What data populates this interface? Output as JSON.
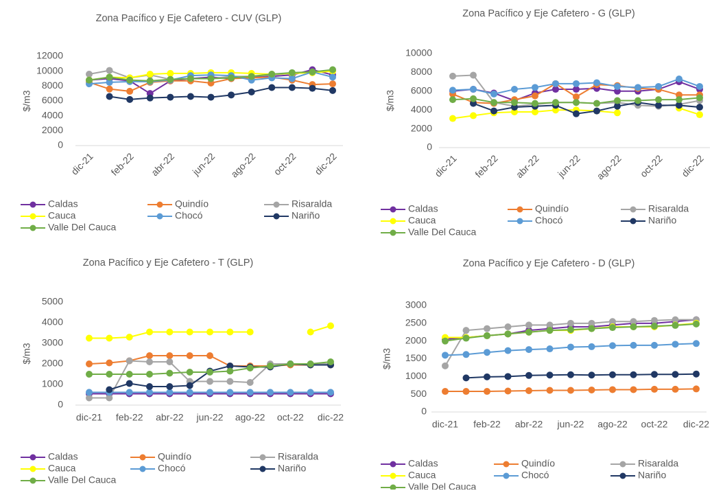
{
  "chart_data": [
    {
      "type": "line",
      "title": "Zona Pacífico y Eje Cafetero - CUV (GLP)",
      "y_label": "$/m3",
      "legend": "bottom",
      "categories": [
        "dic-21",
        null,
        "feb-22",
        null,
        "abr-22",
        null,
        "jun-22",
        null,
        "ago-22",
        null,
        "oct-22",
        null,
        "dic-22"
      ],
      "ylim": [
        0,
        12000
      ],
      "yticks": [
        0,
        2000,
        4000,
        6000,
        8000,
        10000,
        12000
      ],
      "series": [
        {
          "name": "Caldas",
          "color": "#7030a0",
          "values": [
            8800,
            9000,
            8700,
            7000,
            8700,
            9000,
            9200,
            9000,
            9200,
            9300,
            9500,
            10200,
            9500
          ]
        },
        {
          "name": "Quindío",
          "color": "#ed7d31",
          "values": [
            8500,
            7600,
            7300,
            8500,
            8700,
            8700,
            8400,
            9000,
            9100,
            9200,
            8800,
            8200,
            8300
          ]
        },
        {
          "name": "Risaralda",
          "color": "#a5a5a5",
          "values": [
            9600,
            10100,
            9100,
            9500,
            8900,
            9000,
            9000,
            9300,
            9300,
            9500,
            9700,
            9800,
            10100
          ]
        },
        {
          "name": "Cauca",
          "color": "#ffff00",
          "values": [
            8800,
            9200,
            9100,
            9600,
            9700,
            9700,
            9800,
            9800,
            9700,
            9600,
            9700,
            9800,
            10000
          ]
        },
        {
          "name": "Chocó",
          "color": "#5b9bd5",
          "values": [
            8300,
            8500,
            8600,
            8600,
            8800,
            9400,
            9500,
            9400,
            8800,
            9100,
            9000,
            9900,
            9200
          ]
        },
        {
          "name": "Nariño",
          "color": "#203864",
          "values": [
            null,
            6600,
            6200,
            6400,
            6500,
            6600,
            6500,
            6800,
            7200,
            7800,
            7800,
            7700,
            7400
          ]
        },
        {
          "name": "Valle Del Cauca",
          "color": "#70ad47",
          "values": [
            8800,
            9200,
            8800,
            8700,
            8900,
            9000,
            9000,
            9100,
            9300,
            9600,
            9800,
            9900,
            10200
          ]
        }
      ]
    },
    {
      "type": "line",
      "title": "Zona Pacífico y Eje Cafetero - G (GLP)",
      "y_label": "$/m3",
      "legend": "bottom",
      "categories": [
        "dic-21",
        null,
        "feb-22",
        null,
        "abr-22",
        null,
        "jun-22",
        null,
        "ago-22",
        null,
        "oct-22",
        null,
        "dic-22"
      ],
      "ylim": [
        0,
        10000
      ],
      "yticks": [
        0,
        2000,
        4000,
        6000,
        8000,
        10000
      ],
      "series": [
        {
          "name": "Caldas",
          "color": "#7030a0",
          "values": [
            6000,
            6200,
            5800,
            5000,
            5800,
            6200,
            6200,
            6300,
            6000,
            6000,
            6200,
            7000,
            6200
          ]
        },
        {
          "name": "Quindío",
          "color": "#ed7d31",
          "values": [
            5700,
            4800,
            4700,
            5100,
            5500,
            6800,
            5400,
            6700,
            6600,
            6300,
            6200,
            5600,
            5600
          ]
        },
        {
          "name": "Risaralda",
          "color": "#a5a5a5",
          "values": [
            7600,
            7700,
            4800,
            4400,
            4600,
            4800,
            4800,
            4700,
            4800,
            4500,
            4400,
            4600,
            5000
          ]
        },
        {
          "name": "Cauca",
          "color": "#ffff00",
          "values": [
            3100,
            3400,
            3700,
            3800,
            3800,
            4000,
            4000,
            3900,
            3700,
            null,
            null,
            4200,
            3500
          ]
        },
        {
          "name": "Chocó",
          "color": "#5b9bd5",
          "values": [
            6100,
            6200,
            5700,
            6200,
            6400,
            6800,
            6800,
            6900,
            6500,
            6400,
            6500,
            7300,
            6500
          ]
        },
        {
          "name": "Nariño",
          "color": "#203864",
          "values": [
            null,
            4700,
            3900,
            4300,
            4400,
            4500,
            3600,
            3900,
            4400,
            4800,
            4500,
            4500,
            4300
          ]
        },
        {
          "name": "Valle Del Cauca",
          "color": "#70ad47",
          "values": [
            5100,
            5200,
            4800,
            4800,
            4700,
            4800,
            4800,
            4700,
            5000,
            5000,
            5100,
            5100,
            5300
          ]
        }
      ]
    },
    {
      "type": "line",
      "title": "Zona Pacífico y Eje Cafetero - T (GLP)",
      "y_label": "$/m3",
      "legend": "bottom",
      "categories": [
        "dic-21",
        null,
        "feb-22",
        null,
        "abr-22",
        null,
        "jun-22",
        null,
        "ago-22",
        null,
        "oct-22",
        null,
        "dic-22"
      ],
      "ylim": [
        0,
        5000
      ],
      "yticks": [
        0,
        1000,
        2000,
        3000,
        4000,
        5000
      ],
      "series": [
        {
          "name": "Caldas",
          "color": "#7030a0",
          "values": [
            550,
            550,
            550,
            550,
            550,
            550,
            550,
            550,
            550,
            550,
            550,
            550,
            550
          ]
        },
        {
          "name": "Quindío",
          "color": "#ed7d31",
          "values": [
            2000,
            2050,
            2150,
            2400,
            2400,
            2400,
            2400,
            1900,
            1900,
            1900,
            1950,
            1950,
            1950
          ]
        },
        {
          "name": "Risaralda",
          "color": "#a5a5a5",
          "values": [
            350,
            350,
            2150,
            2100,
            2100,
            1150,
            1150,
            1150,
            1100,
            2000,
            2000,
            2000,
            2000
          ]
        },
        {
          "name": "Cauca",
          "color": "#ffff00",
          "values": [
            3250,
            3250,
            3300,
            3550,
            3550,
            3550,
            3550,
            3550,
            3550,
            null,
            null,
            3550,
            3850
          ]
        },
        {
          "name": "Chocó",
          "color": "#5b9bd5",
          "values": [
            620,
            620,
            620,
            620,
            620,
            620,
            620,
            620,
            620,
            620,
            620,
            620,
            620
          ]
        },
        {
          "name": "Nariño",
          "color": "#203864",
          "values": [
            null,
            750,
            1050,
            900,
            900,
            950,
            1650,
            1900,
            1850,
            1850,
            2000,
            1950,
            1950
          ]
        },
        {
          "name": "Valle Del Cauca",
          "color": "#70ad47",
          "values": [
            1500,
            1500,
            1500,
            1500,
            1550,
            1600,
            1600,
            1650,
            1800,
            1900,
            2000,
            2000,
            2100
          ]
        }
      ]
    },
    {
      "type": "line",
      "title": "Zona Pacífico y Eje Cafetero - D (GLP)",
      "y_label": "$/m3",
      "legend": "bottom",
      "categories": [
        "dic-21",
        null,
        "feb-22",
        null,
        "abr-22",
        null,
        "jun-22",
        null,
        "ago-22",
        null,
        "oct-22",
        null,
        "dic-22"
      ],
      "ylim": [
        0,
        3000
      ],
      "yticks": [
        0,
        500,
        1000,
        1500,
        2000,
        2500,
        3000
      ],
      "series": [
        {
          "name": "Caldas",
          "color": "#7030a0",
          "values": [
            2050,
            2100,
            2150,
            2200,
            2300,
            2350,
            2400,
            2400,
            2450,
            2500,
            2500,
            2550,
            2600
          ]
        },
        {
          "name": "Quindío",
          "color": "#ed7d31",
          "values": [
            580,
            580,
            580,
            590,
            600,
            610,
            610,
            620,
            630,
            630,
            640,
            640,
            650
          ]
        },
        {
          "name": "Risaralda",
          "color": "#a5a5a5",
          "values": [
            1300,
            2300,
            2350,
            2400,
            2450,
            2450,
            2500,
            2500,
            2550,
            2550,
            2580,
            2600,
            2600
          ]
        },
        {
          "name": "Cauca",
          "color": "#ffff00",
          "values": [
            2100,
            2100,
            2150,
            2200,
            2250,
            2300,
            2300,
            2350,
            2400,
            2400,
            2400,
            2450,
            2500
          ]
        },
        {
          "name": "Chocó",
          "color": "#5b9bd5",
          "values": [
            1600,
            1620,
            1680,
            1730,
            1760,
            1780,
            1830,
            1840,
            1870,
            1880,
            1880,
            1910,
            1930
          ]
        },
        {
          "name": "Nariño",
          "color": "#203864",
          "values": [
            null,
            960,
            990,
            1000,
            1030,
            1040,
            1050,
            1040,
            1050,
            1050,
            1060,
            1060,
            1070
          ]
        },
        {
          "name": "Valle Del Cauca",
          "color": "#70ad47",
          "values": [
            2000,
            2080,
            2150,
            2200,
            2250,
            2300,
            2320,
            2350,
            2380,
            2400,
            2420,
            2440,
            2480
          ]
        }
      ]
    }
  ]
}
